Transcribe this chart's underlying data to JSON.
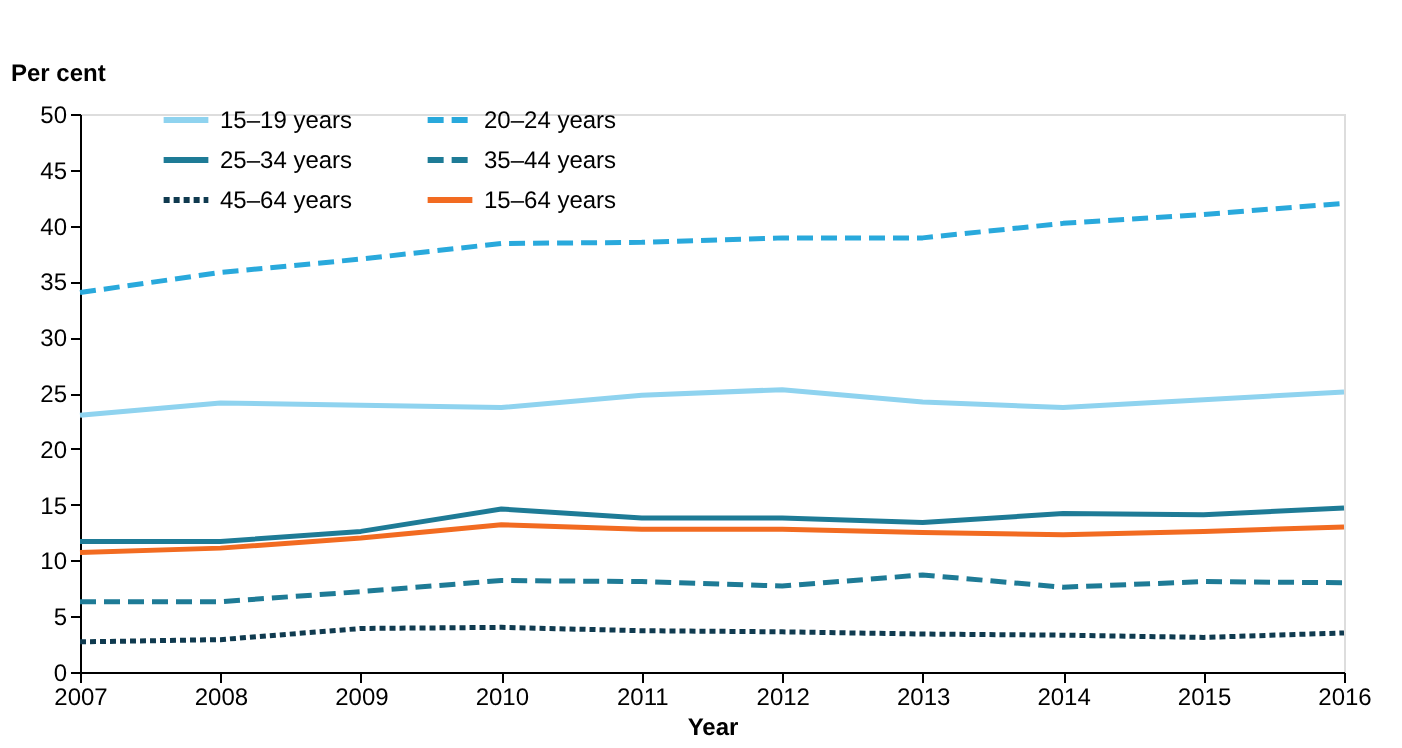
{
  "chart_data": {
    "type": "line",
    "xlabel": "Year",
    "ylabel": "Per cent",
    "x": [
      2007,
      2008,
      2009,
      2010,
      2011,
      2012,
      2013,
      2014,
      2015,
      2016
    ],
    "xlim": [
      2007,
      2016
    ],
    "xticks": [
      2007,
      2008,
      2009,
      2010,
      2011,
      2012,
      2013,
      2014,
      2015,
      2016
    ],
    "ylim": [
      0,
      50
    ],
    "yticks": [
      0,
      5,
      10,
      15,
      20,
      25,
      30,
      35,
      40,
      45,
      50
    ],
    "grid": false,
    "legend": "top left",
    "marker": "none",
    "series": [
      {
        "name": "15–19 years",
        "color": "#8fd3ef",
        "line_style": "solid",
        "values": [
          23.0,
          24.1,
          23.9,
          23.7,
          24.8,
          25.3,
          24.2,
          23.7,
          24.4,
          25.1
        ]
      },
      {
        "name": "20–24 years",
        "color": "#29a9dc",
        "line_style": "dashed",
        "values": [
          34.0,
          35.8,
          37.0,
          38.4,
          38.5,
          38.9,
          38.9,
          40.2,
          41.0,
          42.0
        ]
      },
      {
        "name": "25–34 years",
        "color": "#1e7b96",
        "line_style": "solid",
        "values": [
          11.7,
          11.7,
          12.6,
          14.6,
          13.8,
          13.8,
          13.4,
          14.2,
          14.1,
          14.7
        ]
      },
      {
        "name": "35–44 years",
        "color": "#1e7b96",
        "line_style": "dashed",
        "values": [
          6.3,
          6.3,
          7.2,
          8.2,
          8.1,
          7.7,
          8.7,
          7.6,
          8.1,
          8.0
        ]
      },
      {
        "name": "45–64 years",
        "color": "#0f3a4f",
        "line_style": "dotted",
        "values": [
          2.7,
          2.9,
          3.9,
          4.0,
          3.7,
          3.6,
          3.4,
          3.3,
          3.1,
          3.5
        ]
      },
      {
        "name": "15–64 years",
        "color": "#f26b21",
        "line_style": "solid",
        "values": [
          10.7,
          11.1,
          12.0,
          13.2,
          12.8,
          12.8,
          12.5,
          12.3,
          12.6,
          13.0
        ]
      }
    ]
  }
}
